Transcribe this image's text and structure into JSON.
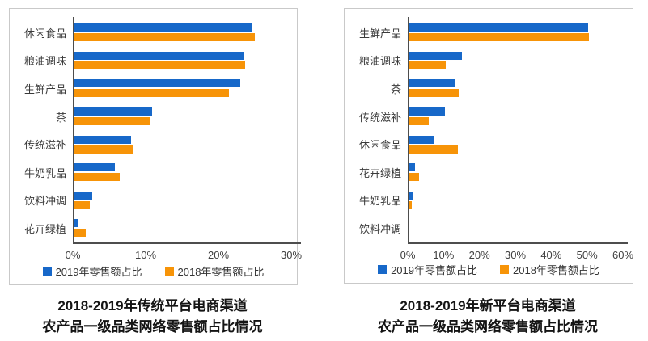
{
  "colors": {
    "series_2019": "#1768C9",
    "series_2018": "#F79408",
    "axis": "#4d4d4d",
    "panel_border": "#c9c9c9"
  },
  "chart_data": [
    {
      "type": "bar",
      "orientation": "horizontal",
      "title": "2018-2019年传统平台电商渠道 农产品一级品类网络零售额占比情况",
      "title_lines": [
        "2018-2019年传统平台电商渠道",
        "农产品一级品类网络零售额占比情况"
      ],
      "categories": [
        "休闲食品",
        "粮油调味",
        "生鲜产品",
        "茶",
        "传统滋补",
        "牛奶乳品",
        "饮料冲调",
        "花卉绿植"
      ],
      "series": [
        {
          "name": "2019年零售额占比",
          "color": "#1768C9",
          "values": [
            24.5,
            23.6,
            23.0,
            10.9,
            8.0,
            5.8,
            2.7,
            0.7
          ]
        },
        {
          "name": "2018年零售额占比",
          "color": "#F79408",
          "values": [
            25.0,
            23.7,
            21.4,
            10.7,
            8.2,
            6.4,
            2.3,
            1.8
          ]
        }
      ],
      "xlabel": "",
      "ylabel": "",
      "xlim": [
        0,
        30
      ],
      "xticks": [
        {
          "label": "0%",
          "value": 0
        },
        {
          "label": "10%",
          "value": 10
        },
        {
          "label": "20%",
          "value": 20
        },
        {
          "label": "30%",
          "value": 30
        }
      ],
      "grid": false,
      "legend_position": "bottom"
    },
    {
      "type": "bar",
      "orientation": "horizontal",
      "title": "2018-2019年新平台电商渠道 农产品一级品类网络零售额占比情况",
      "title_lines": [
        "2018-2019年新平台电商渠道",
        "农产品一级品类网络零售额占比情况"
      ],
      "categories": [
        "生鲜产品",
        "粮油调味",
        "茶",
        "传统滋补",
        "休闲食品",
        "花卉绿植",
        "牛奶乳品",
        "饮料冲调"
      ],
      "series": [
        {
          "name": "2019年零售额占比",
          "color": "#1768C9",
          "values": [
            50.3,
            15.0,
            13.2,
            10.3,
            7.5,
            2.0,
            1.3,
            0
          ]
        },
        {
          "name": "2018年零售额占比",
          "color": "#F79408",
          "values": [
            50.6,
            10.5,
            14.3,
            5.8,
            14.0,
            3.2,
            1.2,
            0
          ]
        }
      ],
      "xlabel": "",
      "ylabel": "",
      "xlim": [
        0,
        60
      ],
      "xticks": [
        {
          "label": "0%",
          "value": 0
        },
        {
          "label": "10%",
          "value": 10
        },
        {
          "label": "20%",
          "value": 20
        },
        {
          "label": "30%",
          "value": 30
        },
        {
          "label": "40%",
          "value": 40
        },
        {
          "label": "50%",
          "value": 50
        },
        {
          "label": "60%",
          "value": 60
        }
      ],
      "grid": false,
      "legend_position": "bottom"
    }
  ]
}
